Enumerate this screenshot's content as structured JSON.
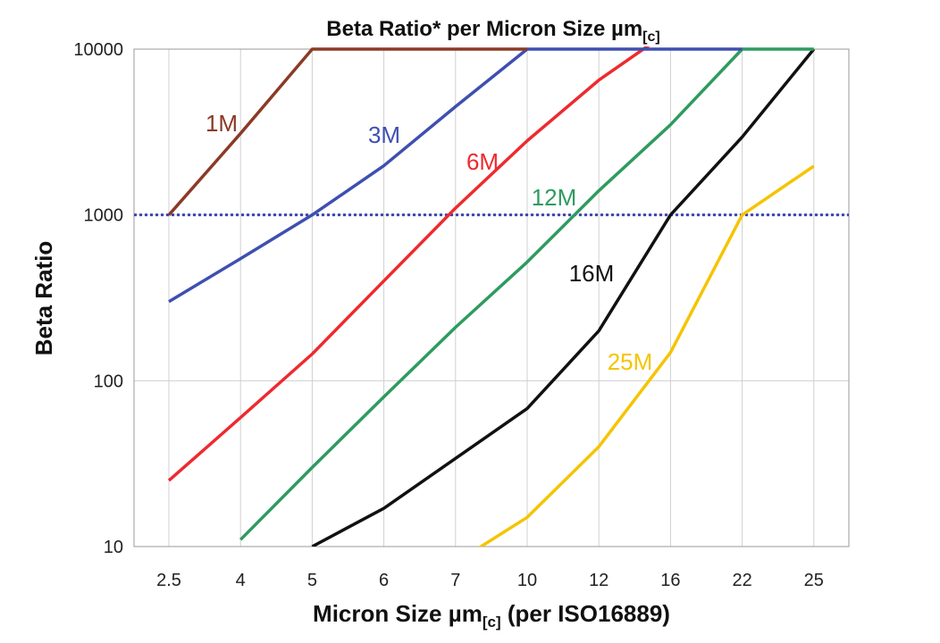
{
  "chart_data": {
    "type": "line",
    "title": "Beta Ratio* per Micron Size µm",
    "title_subscript": "[c]",
    "xlabel_prefix": "Micron Size µm",
    "xlabel_subscript": "[c]",
    "xlabel_suffix": " (per ISO16889)",
    "ylabel": "Beta Ratio",
    "yscale": "log",
    "ylim": [
      10,
      10000
    ],
    "yticks": [
      "10",
      "100",
      "1000",
      "10000"
    ],
    "categories": [
      "2.5",
      "4",
      "5",
      "6",
      "7",
      "10",
      "12",
      "16",
      "22",
      "25"
    ],
    "grid": true,
    "reference_line": {
      "y": 1000,
      "style": "dotted",
      "color": "#3B46B0"
    },
    "series": [
      {
        "name": "1M",
        "color": "#8B3A26",
        "values": [
          1000,
          3100,
          10000,
          10000,
          10000,
          10000,
          null,
          null,
          null,
          null
        ]
      },
      {
        "name": "3M",
        "color": "#3F4FB0",
        "values": [
          300,
          545,
          1000,
          1980,
          4500,
          10000,
          10000,
          10000,
          10000,
          null
        ]
      },
      {
        "name": "6M",
        "color": "#EE2A2F",
        "values": [
          25,
          60,
          145,
          400,
          1100,
          2800,
          6500,
          13000,
          null,
          null
        ]
      },
      {
        "name": "12M",
        "color": "#2E9B5F",
        "values": [
          null,
          11,
          30,
          80,
          210,
          520,
          1400,
          3500,
          10000,
          10000
        ]
      },
      {
        "name": "16M",
        "color": "#111111",
        "values": [
          null,
          null,
          10,
          17,
          34,
          68,
          200,
          1000,
          2950,
          10000
        ]
      },
      {
        "name": "25M",
        "color": "#F5C400",
        "values": [
          null,
          null,
          null,
          null,
          8,
          15,
          40,
          148,
          1000,
          1970
        ]
      }
    ]
  }
}
